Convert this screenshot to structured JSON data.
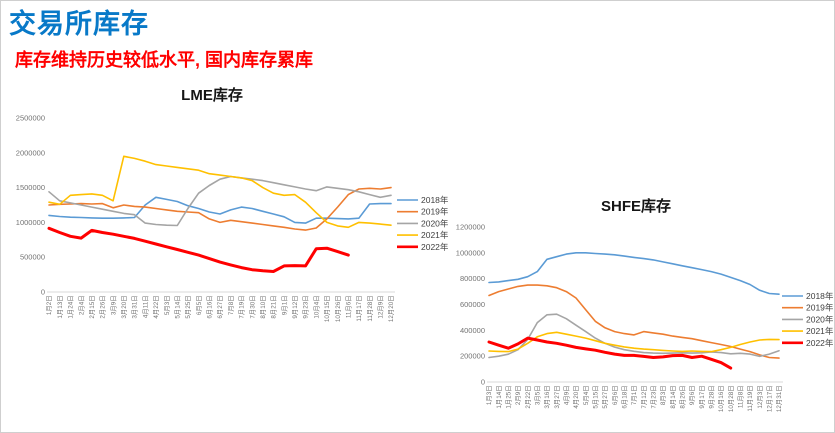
{
  "page": {
    "title": "交易所库存",
    "subtitle": "库存维持历史较低水平, 国内库存累库",
    "title_color": "#0879c8",
    "subtitle_color": "#ff0000"
  },
  "chart_data": [
    {
      "id": "lme",
      "type": "line",
      "title": "LME库存",
      "xlabel": "",
      "ylabel": "",
      "ylim": [
        0,
        2500000
      ],
      "ytick_step": 500000,
      "yticks": [
        "0",
        "500000",
        "1000000",
        "1500000",
        "2000000",
        "2500000"
      ],
      "grid": false,
      "legend_position": "right",
      "categories": [
        "1月2日",
        "1月13日",
        "1月24日",
        "2月4日",
        "2月15日",
        "2月26日",
        "3月9日",
        "3月20日",
        "3月31日",
        "4月11日",
        "4月22日",
        "5月3日",
        "5月14日",
        "5月25日",
        "6月5日",
        "6月16日",
        "6月27日",
        "7月8日",
        "7月19日",
        "7月30日",
        "8月10日",
        "8月21日",
        "9月1日",
        "9月12日",
        "9月23日",
        "10月4日",
        "10月15日",
        "10月26日",
        "11月6日",
        "11月17日",
        "11月28日",
        "12月9日",
        "12月20日"
      ],
      "series": [
        {
          "name": "2018年",
          "color": "#5B9BD5",
          "width": 1.6,
          "values": [
            1100000,
            1085000,
            1075000,
            1070000,
            1065000,
            1060000,
            1060000,
            1065000,
            1070000,
            1250000,
            1360000,
            1330000,
            1300000,
            1240000,
            1200000,
            1150000,
            1120000,
            1180000,
            1220000,
            1200000,
            1160000,
            1120000,
            1080000,
            1000000,
            990000,
            1060000,
            1060000,
            1055000,
            1050000,
            1060000,
            1265000,
            1270000,
            1270000
          ]
        },
        {
          "name": "2019年",
          "color": "#ED7D31",
          "width": 1.6,
          "values": [
            1250000,
            1260000,
            1265000,
            1270000,
            1265000,
            1270000,
            1210000,
            1250000,
            1230000,
            1220000,
            1200000,
            1180000,
            1160000,
            1150000,
            1140000,
            1050000,
            1000000,
            1030000,
            1010000,
            990000,
            970000,
            950000,
            930000,
            905000,
            890000,
            920000,
            1050000,
            1220000,
            1400000,
            1480000,
            1490000,
            1480000,
            1500000
          ]
        },
        {
          "name": "2020年",
          "color": "#A5A5A5",
          "width": 1.6,
          "values": [
            1440000,
            1310000,
            1280000,
            1250000,
            1220000,
            1190000,
            1160000,
            1130000,
            1110000,
            990000,
            970000,
            960000,
            955000,
            1200000,
            1420000,
            1530000,
            1620000,
            1660000,
            1640000,
            1620000,
            1600000,
            1570000,
            1540000,
            1510000,
            1480000,
            1455000,
            1510000,
            1490000,
            1470000,
            1440000,
            1400000,
            1360000,
            1390000
          ]
        },
        {
          "name": "2021年",
          "color": "#FFC000",
          "width": 1.6,
          "values": [
            1290000,
            1260000,
            1390000,
            1400000,
            1410000,
            1390000,
            1310000,
            1950000,
            1920000,
            1880000,
            1830000,
            1810000,
            1790000,
            1770000,
            1750000,
            1700000,
            1680000,
            1660000,
            1640000,
            1600000,
            1500000,
            1420000,
            1390000,
            1400000,
            1290000,
            1140000,
            1000000,
            950000,
            930000,
            1000000,
            990000,
            975000,
            960000
          ]
        },
        {
          "name": "2022年",
          "color": "#FF0000",
          "width": 3,
          "values": [
            915000,
            855000,
            800000,
            775000,
            885000,
            855000,
            830000,
            800000,
            770000,
            730000,
            690000,
            650000,
            610000,
            570000,
            530000,
            480000,
            430000,
            390000,
            350000,
            320000,
            305000,
            295000,
            375000,
            380000,
            375000,
            620000,
            630000,
            580000,
            530000,
            null,
            null,
            null,
            null
          ]
        }
      ]
    },
    {
      "id": "shfe",
      "type": "line",
      "title": "SHFE库存",
      "xlabel": "",
      "ylabel": "",
      "ylim": [
        0,
        1200000
      ],
      "ytick_step": 200000,
      "yticks": [
        "0",
        "200000",
        "400000",
        "600000",
        "800000",
        "1000000",
        "1200000"
      ],
      "grid": false,
      "legend_position": "right",
      "categories": [
        "1月3日",
        "1月14日",
        "1月25日",
        "2月9日",
        "2月22日",
        "3月5日",
        "3月16日",
        "3月27日",
        "4月9日",
        "4月20日",
        "5月4日",
        "5月15日",
        "5月27日",
        "6月6日",
        "6月18日",
        "7月1日",
        "7月12日",
        "7月23日",
        "8月3日",
        "8月14日",
        "8月26日",
        "9月6日",
        "9月17日",
        "9月28日",
        "10月16日",
        "10月28日",
        "11月8日",
        "11月19日",
        "12月3日",
        "12月17日",
        "12月31日"
      ],
      "series": [
        {
          "name": "2018年",
          "color": "#5B9BD5",
          "width": 1.6,
          "values": [
            770000,
            775000,
            785000,
            795000,
            815000,
            855000,
            950000,
            970000,
            990000,
            1000000,
            1000000,
            995000,
            990000,
            985000,
            975000,
            965000,
            955000,
            945000,
            930000,
            915000,
            900000,
            885000,
            870000,
            855000,
            835000,
            810000,
            785000,
            755000,
            710000,
            685000,
            680000
          ]
        },
        {
          "name": "2019年",
          "color": "#ED7D31",
          "width": 1.6,
          "values": [
            670000,
            700000,
            720000,
            740000,
            750000,
            750000,
            745000,
            730000,
            700000,
            650000,
            560000,
            470000,
            420000,
            390000,
            375000,
            365000,
            390000,
            380000,
            370000,
            355000,
            345000,
            335000,
            320000,
            305000,
            290000,
            275000,
            255000,
            235000,
            210000,
            190000,
            185000
          ]
        },
        {
          "name": "2020年",
          "color": "#A5A5A5",
          "width": 1.6,
          "values": [
            190000,
            200000,
            215000,
            250000,
            330000,
            460000,
            520000,
            525000,
            490000,
            440000,
            390000,
            340000,
            300000,
            270000,
            250000,
            238000,
            228000,
            224000,
            222000,
            224000,
            226000,
            224000,
            226000,
            232000,
            228000,
            218000,
            222000,
            216000,
            198000,
            216000,
            242000
          ]
        },
        {
          "name": "2021年",
          "color": "#FFC000",
          "width": 1.6,
          "values": [
            240000,
            237000,
            235000,
            255000,
            300000,
            350000,
            375000,
            385000,
            370000,
            355000,
            340000,
            320000,
            300000,
            285000,
            272000,
            262000,
            255000,
            250000,
            245000,
            240000,
            237000,
            240000,
            237000,
            235000,
            250000,
            268000,
            290000,
            310000,
            325000,
            330000,
            328000
          ]
        },
        {
          "name": "2022年",
          "color": "#FF0000",
          "width": 3,
          "values": [
            310000,
            285000,
            262000,
            295000,
            340000,
            325000,
            310000,
            300000,
            285000,
            268000,
            256000,
            246000,
            230000,
            216000,
            206000,
            206000,
            198000,
            190000,
            194000,
            204000,
            206000,
            190000,
            200000,
            176000,
            150000,
            108000,
            null,
            null,
            null,
            null,
            null
          ]
        }
      ]
    }
  ]
}
